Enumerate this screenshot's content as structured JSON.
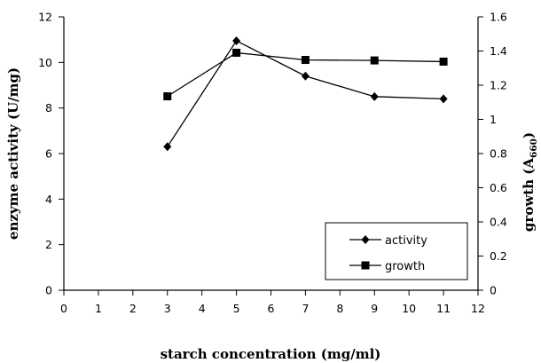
{
  "chart_data": {
    "type": "line",
    "title": "",
    "xlabel": "starch concentration (mg/ml)",
    "ylabel_left": "enzyme activity (U/mg)",
    "ylabel_right": "growth (A",
    "ylabel_right_subscript": "660",
    "ylabel_right_suffix": ")",
    "xlim": [
      0,
      12
    ],
    "ylim_left": [
      0,
      12
    ],
    "ylim_right": [
      0,
      1.6
    ],
    "x_ticks": [
      "0",
      "1",
      "2",
      "3",
      "4",
      "5",
      "6",
      "7",
      "8",
      "9",
      "10",
      "11",
      "12"
    ],
    "y_left_ticks": [
      "0",
      "2",
      "4",
      "6",
      "8",
      "10",
      "12"
    ],
    "y_right_ticks": [
      "0",
      "0.2",
      "0.4",
      "0.6",
      "0.8",
      "1",
      "1.2",
      "1.4",
      "1.6"
    ],
    "grid": false,
    "legend_position": "bottom-right",
    "series": [
      {
        "name": "activity",
        "axis": "left",
        "marker": "diamond",
        "color": "#000000",
        "x": [
          3,
          5,
          7,
          9,
          11
        ],
        "y": [
          6.3,
          10.95,
          9.4,
          8.5,
          8.4
        ]
      },
      {
        "name": "growth",
        "axis": "right",
        "marker": "square",
        "color": "#000000",
        "x": [
          3,
          5,
          7,
          9,
          11
        ],
        "y": [
          1.135,
          1.39,
          1.348,
          1.345,
          1.338
        ]
      }
    ]
  }
}
